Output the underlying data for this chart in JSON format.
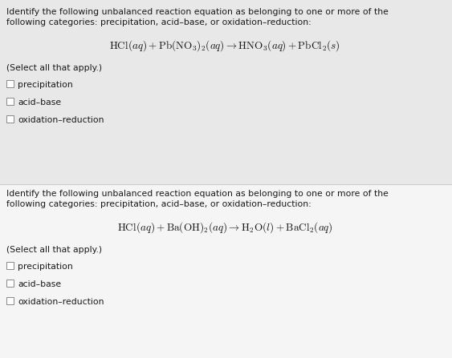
{
  "bg_color_top": "#ebebeb",
  "bg_color_bottom": "#f8f8f8",
  "white_bg": "#f8f8f8",
  "text_color": "#1a1a1a",
  "body_font_size": 7.8,
  "equation_font_size": 9.5,
  "section1": {
    "instruction_line1": "Identify the following unbalanced reaction equation as belonging to one or more of the",
    "instruction_line2": "following categories: precipitation, acid–base, or oxidation–reduction:",
    "eq1": "$\\mathrm{HCl}(aq) + \\mathrm{Pb(NO_3)_2}(aq) \\rightarrow \\mathrm{HNO_3}(aq) + \\mathrm{PbCl_2}(s)$",
    "select_text": "(Select all that apply.)",
    "options": [
      "precipitation",
      "acid–base",
      "oxidation–reduction"
    ]
  },
  "section2": {
    "instruction_line1": "Identify the following unbalanced reaction equation as belonging to one or more of the",
    "instruction_line2": "following categories: precipitation, acid–base, or oxidation–reduction:",
    "eq2": "$\\mathrm{HCl}(aq) + \\mathrm{Ba(OH)_2}(aq) \\rightarrow \\mathrm{H_2O}(l) + \\mathrm{BaCl_2}(aq)$",
    "select_text": "(Select all that apply.)",
    "options": [
      "precipitation",
      "acid–base",
      "oxidation–reduction"
    ]
  },
  "divider_color": "#cccccc",
  "checkbox_edge": "#888888",
  "checkbox_face": "#ffffff"
}
